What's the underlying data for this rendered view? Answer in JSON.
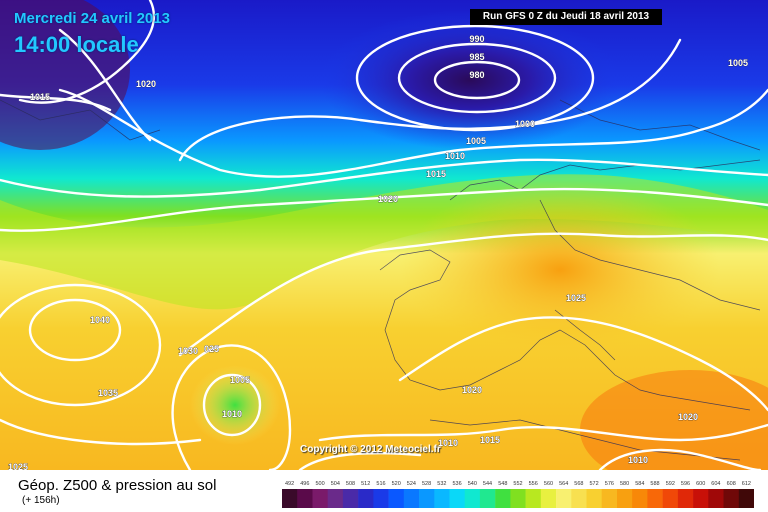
{
  "header": {
    "date": "Mercredi 24 avril 2013",
    "local_time": "14:00 locale",
    "run": "Run GFS 0 Z du Jeudi 18 avril 2013"
  },
  "copyright": "Copyright © 2012 Meteociel.fr",
  "footer": {
    "label": "Géop. Z500 & pression au sol",
    "sub": "(+ 156h)"
  },
  "pressure_labels": [
    {
      "text": "990"
    },
    {
      "text": "985"
    },
    {
      "text": "980"
    },
    {
      "text": "1000"
    },
    {
      "text": "1005"
    },
    {
      "text": "1010"
    },
    {
      "text": "1015"
    },
    {
      "text": "1020"
    },
    {
      "text": "1020"
    },
    {
      "text": "1015"
    },
    {
      "text": "1005"
    },
    {
      "text": "1025"
    },
    {
      "text": "1040"
    },
    {
      "text": "1030"
    },
    {
      "text": "025"
    },
    {
      "text": "1035"
    },
    {
      "text": "1005"
    },
    {
      "text": "1010"
    },
    {
      "text": "1025"
    },
    {
      "text": "1020"
    },
    {
      "text": "1010"
    },
    {
      "text": "1015"
    },
    {
      "text": "1020"
    },
    {
      "text": "1010"
    }
  ],
  "legend": {
    "values": [
      "492",
      "496",
      "500",
      "504",
      "508",
      "512",
      "516",
      "520",
      "524",
      "528",
      "532",
      "536",
      "540",
      "544",
      "548",
      "552",
      "556",
      "560",
      "564",
      "568",
      "572",
      "576",
      "580",
      "584",
      "588",
      "592",
      "596",
      "600",
      "604",
      "608",
      "612"
    ],
    "colors": [
      "#3a0a2a",
      "#5a0a4a",
      "#7a1a6a",
      "#6a2a8a",
      "#4a2aa8",
      "#2a2ac8",
      "#1a3ae8",
      "#0a58ff",
      "#0a78ff",
      "#0a98ff",
      "#0ab8ff",
      "#0ad8f8",
      "#10e8d0",
      "#20e890",
      "#40e040",
      "#80e020",
      "#b8e820",
      "#e8f040",
      "#f8f070",
      "#f8e050",
      "#f8d030",
      "#f8b820",
      "#f8a010",
      "#f88808",
      "#f86808",
      "#f04808",
      "#e02808",
      "#c81008",
      "#a00808",
      "#700808",
      "#400808"
    ]
  }
}
